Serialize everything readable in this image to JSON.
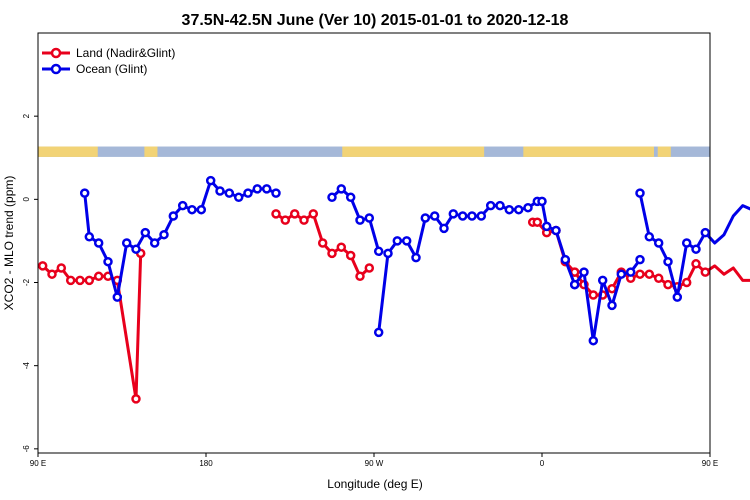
{
  "chart_data": {
    "type": "line",
    "title": "37.5N-42.5N June (Ver 10)   2015-01-01 to 2020-12-18",
    "xlabel": "Longitude (deg E)",
    "ylabel": "XCO2 - MLO trend (ppm)",
    "xlim": [
      90,
      450
    ],
    "ylim": [
      -6.1,
      4.0
    ],
    "x_ticks": [
      {
        "value": 90,
        "label": "90 E"
      },
      {
        "value": 180,
        "label": "180"
      },
      {
        "value": 270,
        "label": "90 W"
      },
      {
        "value": 360,
        "label": "0"
      },
      {
        "value": 450,
        "label": "90 E"
      },
      {
        "value": 540,
        "label": "180"
      }
    ],
    "y_ticks": [
      {
        "value": -6,
        "label": "-6"
      },
      {
        "value": -4,
        "label": "-4"
      },
      {
        "value": -2,
        "label": "-2"
      },
      {
        "value": 0,
        "label": "0"
      },
      {
        "value": 2,
        "label": "2"
      }
    ],
    "legend_position": "top-left",
    "grid": false,
    "land_ocean_strip": {
      "y_range": [
        1.02,
        1.27
      ],
      "ocean_color": "#a5b8d8",
      "land_color": "#f2d376",
      "land_spans": [
        [
          90,
          122
        ],
        [
          147,
          154
        ],
        [
          253,
          329
        ],
        [
          350,
          420
        ],
        [
          422,
          429
        ],
        [
          450,
          482
        ],
        [
          507,
          514
        ]
      ]
    },
    "series": [
      {
        "name": "Land (Nadir&Glint)",
        "color": "#e8001c",
        "segments": [
          {
            "x": [
              92.5,
              97.5,
              102.5,
              107.5,
              112.5,
              117.5,
              122.5,
              127.5,
              132.5,
              142.5,
              145
            ],
            "y": [
              -1.6,
              -1.8,
              -1.65,
              -1.95,
              -1.95,
              -1.95,
              -1.85,
              -1.85,
              -1.95,
              -4.8,
              -1.3
            ]
          },
          {
            "x": [
              217.5,
              222.5,
              227.5,
              232.5,
              237.5,
              242.5,
              247.5,
              252.5,
              257.5,
              262.5,
              267.5
            ],
            "y": [
              -0.35,
              -0.5,
              -0.35,
              -0.5,
              -0.35,
              -1.05,
              -1.3,
              -1.15,
              -1.35,
              -1.85,
              -1.65
            ]
          },
          {
            "x": [
              355,
              357.5,
              362.5,
              367.5,
              372.5,
              377.5
            ],
            "y": [
              -0.55,
              -0.55,
              -0.8,
              -0.75,
              -1.5,
              -1.75
            ]
          },
          {
            "x": [
              377.5,
              382.5,
              387.5,
              392.5,
              397.5,
              402.5,
              407.5,
              412.5,
              417.5,
              422.5,
              427.5,
              432.5,
              437.5,
              442.5,
              447.5,
              452.5,
              457.5,
              462.5,
              467.5,
              472.5,
              477.5,
              482.5,
              492.5,
              495
            ],
            "y": [
              -1.75,
              -2.05,
              -2.3,
              -2.3,
              -2.15,
              -1.75,
              -1.9,
              -1.8,
              -1.8,
              -1.9,
              -2.05,
              -2.1,
              -2.0,
              -1.55,
              -1.75,
              -1.6,
              -1.8,
              -1.65,
              -1.95,
              -1.95,
              -1.95,
              -1.85,
              -4.8,
              -1.3
            ]
          }
        ]
      },
      {
        "name": "Ocean (Glint)",
        "color": "#0000e8",
        "segments": [
          {
            "x": [
              115,
              117.5,
              122.5,
              127.5,
              132.5,
              137.5,
              142.5,
              147.5,
              152.5,
              157.5,
              162.5,
              167.5,
              172.5,
              177.5,
              182.5,
              187.5,
              192.5,
              197.5,
              202.5,
              207.5,
              212.5,
              217.5
            ],
            "y": [
              0.15,
              -0.9,
              -1.05,
              -1.5,
              -2.35,
              -1.05,
              -1.2,
              -0.8,
              -1.05,
              -0.85,
              -0.4,
              -0.15,
              -0.25,
              -0.25,
              0.45,
              0.2,
              0.15,
              0.05,
              0.15,
              0.25,
              0.25,
              0.15
            ]
          },
          {
            "x": [
              247.5,
              252.5,
              257.5,
              262.5,
              267.5,
              272.5
            ],
            "y": [
              0.05,
              0.25,
              0.05,
              -0.5,
              -0.45,
              -1.25
            ]
          },
          {
            "x": [
              272.5,
              277.5,
              282.5,
              287.5,
              292.5,
              297.5,
              302.5,
              307.5,
              312.5,
              317.5,
              322.5,
              327.5,
              332.5,
              337.5,
              342.5,
              347.5,
              352.5,
              357.5,
              360,
              362.5,
              367.5,
              372.5,
              377.5
            ],
            "y": [
              -3.2,
              -1.3,
              -1.0,
              -1.0,
              -1.4,
              -0.45,
              -0.4,
              -0.7,
              -0.35,
              -0.4,
              -0.4,
              -0.4,
              -0.15,
              -0.15,
              -0.25,
              -0.25,
              -0.2,
              -0.05,
              -0.05,
              -0.65,
              -0.75,
              -1.45,
              -2.05
            ]
          },
          {
            "x": [
              377.5,
              382.5,
              387.5,
              392.5,
              397.5,
              402.5,
              407.5,
              412.5
            ],
            "y": [
              -2.05,
              -1.75,
              -3.4,
              -1.95,
              -2.55,
              -1.8,
              -1.75,
              -1.45
            ]
          },
          {
            "x": [
              412.5,
              417.5,
              422.5,
              427.5,
              432.5,
              437.5,
              442.5,
              447.5,
              452.5,
              457.5,
              462.5,
              467.5,
              472.5,
              477.5,
              482.5,
              487.5,
              492.5,
              497.5,
              502.5
            ],
            "y": [
              0.15,
              -0.9,
              -1.05,
              -1.5,
              -2.35,
              -1.05,
              -1.2,
              -0.8,
              -1.05,
              -0.85,
              -0.4,
              -0.15,
              -0.25,
              -0.25,
              0.45,
              0.2,
              0.15,
              0.05,
              0.15
            ]
          }
        ]
      }
    ]
  }
}
